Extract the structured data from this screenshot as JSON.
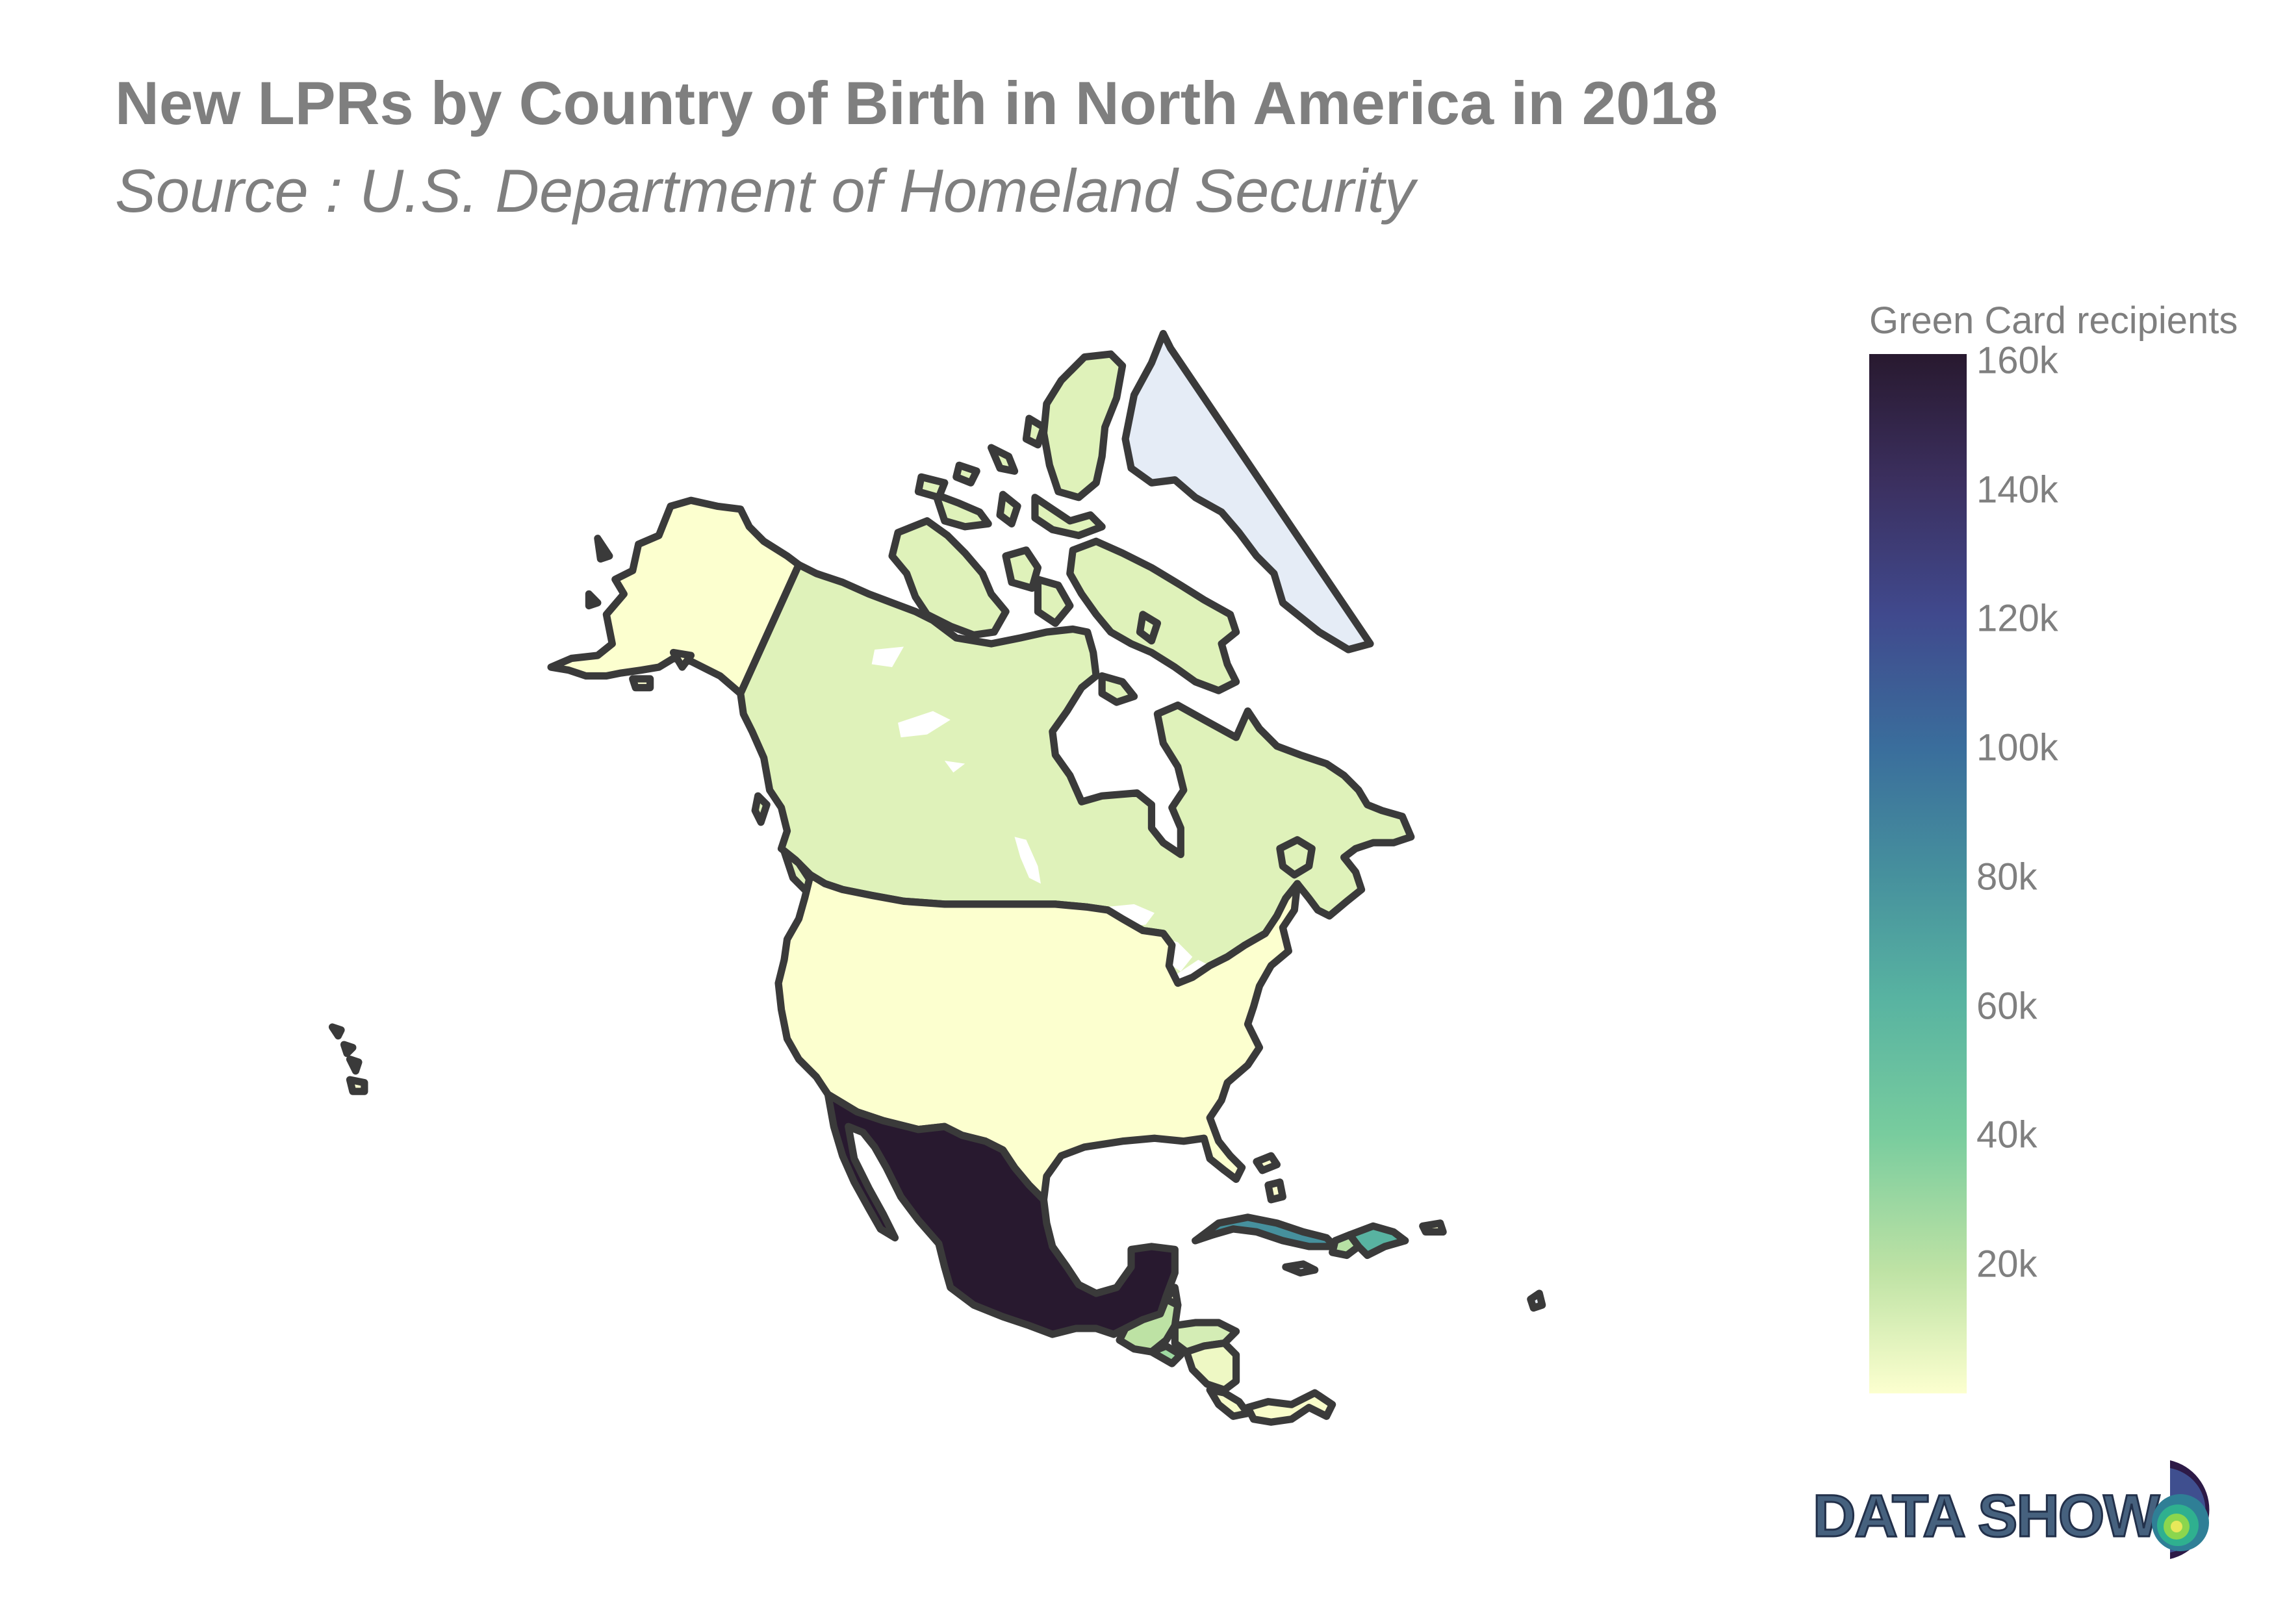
{
  "header": {
    "title": "New LPRs by Country of Birth in North America in 2018",
    "subtitle": "Source : U.S. Department of Homeland Security"
  },
  "colorbar": {
    "title": "Green Card recipients",
    "ticks": [
      {
        "label": "160k",
        "value": 160000
      },
      {
        "label": "140k",
        "value": 140000
      },
      {
        "label": "120k",
        "value": 120000
      },
      {
        "label": "100k",
        "value": 100000
      },
      {
        "label": "80k",
        "value": 80000
      },
      {
        "label": "60k",
        "value": 60000
      },
      {
        "label": "40k",
        "value": 40000
      },
      {
        "label": "20k",
        "value": 20000
      }
    ],
    "range": [
      0,
      161000
    ],
    "colorscale": [
      "#fcffcf",
      "#bde2a4",
      "#78cc9e",
      "#58b3a1",
      "#46909d",
      "#3a6e9c",
      "#40498d",
      "#3b2f5e",
      "#28192f"
    ]
  },
  "logo": {
    "text": "DATA SHOW"
  },
  "chart_data": {
    "type": "choropleth",
    "region": "North America",
    "colorbar_title": "Green Card recipients",
    "missing_color": "#e5ecf6",
    "regions": [
      {
        "name": "Mexico",
        "value": 161000,
        "color": "#28192f"
      },
      {
        "name": "Cuba",
        "value": 77000,
        "color": "#46909d"
      },
      {
        "name": "Dominican Republic",
        "value": 57000,
        "color": "#58b3a1"
      },
      {
        "name": "Guatemala",
        "value": 20000,
        "color": "#bde2a4"
      },
      {
        "name": "Canada",
        "value": 11000,
        "color": "#dff2ba"
      },
      {
        "name": "Haiti",
        "value": 21000,
        "color": "#b7e0a4"
      },
      {
        "name": "El Salvador",
        "value": 28000,
        "color": "#9ed8a1"
      },
      {
        "name": "Honduras",
        "value": 15000,
        "color": "#d4edb5"
      },
      {
        "name": "Nicaragua",
        "value": 5000,
        "color": "#eef8c4"
      },
      {
        "name": "Belize",
        "value": 800,
        "color": "#fafdcc"
      },
      {
        "name": "Costa Rica",
        "value": 3000,
        "color": "#f6fbc9"
      },
      {
        "name": "Panama",
        "value": 2000,
        "color": "#f8fcca"
      },
      {
        "name": "United States",
        "value": 0,
        "color": "#fcffcf"
      },
      {
        "name": "Bahamas",
        "value": 1000,
        "color": "#fafdcc"
      },
      {
        "name": "Puerto Rico",
        "value": 1000,
        "color": "#fafdcc"
      },
      {
        "name": "Greenland",
        "value": null,
        "color": "#e5ecf6"
      }
    ]
  }
}
